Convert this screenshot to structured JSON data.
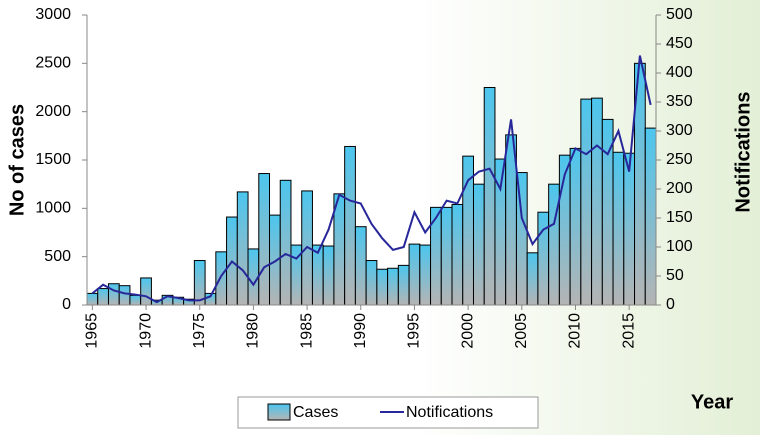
{
  "chart_data": {
    "type": "bar-line",
    "x": [
      1965,
      1966,
      1967,
      1968,
      1969,
      1970,
      1971,
      1972,
      1973,
      1974,
      1975,
      1976,
      1977,
      1978,
      1979,
      1980,
      1981,
      1982,
      1983,
      1984,
      1985,
      1986,
      1987,
      1988,
      1989,
      1990,
      1991,
      1992,
      1993,
      1994,
      1995,
      1996,
      1997,
      1998,
      1999,
      2000,
      2001,
      2002,
      2003,
      2004,
      2005,
      2006,
      2007,
      2008,
      2009,
      2010,
      2011,
      2012,
      2013,
      2014,
      2015,
      2016,
      2017
    ],
    "xlim": [
      1964.5,
      2017.5
    ],
    "xticks": [
      1965,
      1970,
      1975,
      1980,
      1985,
      1990,
      1995,
      2000,
      2005,
      2010,
      2015
    ],
    "xlabel": "Year",
    "ylabel": "No of cases",
    "y2label": "Notifications",
    "ylim": [
      0,
      3000
    ],
    "yticks": [
      0,
      500,
      1000,
      1500,
      2000,
      2500,
      3000
    ],
    "y2lim": [
      0,
      500
    ],
    "y2ticks": [
      0,
      50,
      100,
      150,
      200,
      250,
      300,
      350,
      400,
      450,
      500
    ],
    "legend": "bottom",
    "series": [
      {
        "name": "Cases",
        "type": "bar",
        "color": "#4cc6ee",
        "values": [
          120,
          170,
          220,
          200,
          100,
          280,
          50,
          100,
          80,
          60,
          460,
          120,
          550,
          910,
          1170,
          580,
          1360,
          930,
          1290,
          620,
          1180,
          620,
          610,
          1150,
          1640,
          810,
          460,
          370,
          380,
          410,
          630,
          620,
          1010,
          1010,
          1040,
          1540,
          1250,
          2250,
          1510,
          1760,
          1370,
          540,
          960,
          1250,
          1550,
          1620,
          2130,
          2140,
          1920,
          1580,
          1570,
          2500,
          1830
        ]
      },
      {
        "name": "Notifications",
        "type": "line",
        "axis": "y2",
        "color": "#27279a",
        "values": [
          20,
          35,
          25,
          20,
          18,
          15,
          5,
          15,
          12,
          8,
          8,
          15,
          50,
          75,
          60,
          35,
          65,
          75,
          88,
          80,
          100,
          90,
          130,
          190,
          180,
          175,
          140,
          115,
          95,
          100,
          160,
          125,
          150,
          180,
          175,
          215,
          230,
          235,
          200,
          320,
          150,
          105,
          130,
          140,
          225,
          270,
          260,
          275,
          260,
          300,
          230,
          430,
          345
        ]
      }
    ]
  }
}
